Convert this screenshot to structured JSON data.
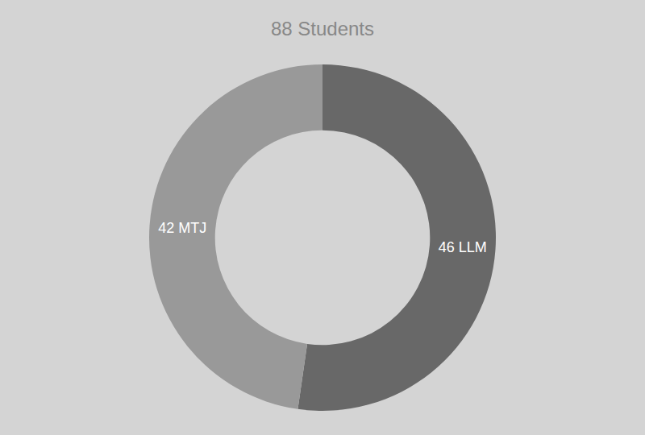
{
  "chart_data": {
    "type": "donut",
    "title": "88 Students",
    "values": [
      46,
      42
    ],
    "value_labels": [
      "46 LLM",
      "42 MTJ"
    ],
    "colors": [
      "#686868",
      "#999999"
    ],
    "data_labels": true
  }
}
